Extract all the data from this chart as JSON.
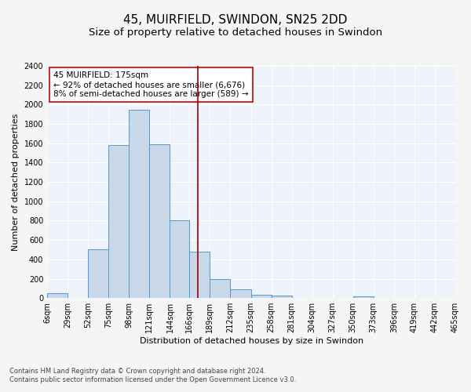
{
  "title": "45, MUIRFIELD, SWINDON, SN25 2DD",
  "subtitle": "Size of property relative to detached houses in Swindon",
  "xlabel": "Distribution of detached houses by size in Swindon",
  "ylabel": "Number of detached properties",
  "footnote1": "Contains HM Land Registry data © Crown copyright and database right 2024.",
  "footnote2": "Contains public sector information licensed under the Open Government Licence v3.0.",
  "annotation_line1": "45 MUIRFIELD: 175sqm",
  "annotation_line2": "← 92% of detached houses are smaller (6,676)",
  "annotation_line3": "8% of semi-detached houses are larger (589) →",
  "vline_x": 175,
  "bar_edges": [
    6,
    29,
    52,
    75,
    98,
    121,
    144,
    166,
    189,
    212,
    235,
    258,
    281,
    304,
    327,
    350,
    373,
    396,
    419,
    442,
    465
  ],
  "bar_heights": [
    50,
    0,
    500,
    1580,
    1950,
    1590,
    800,
    480,
    200,
    90,
    35,
    30,
    0,
    0,
    0,
    20,
    0,
    0,
    0,
    0
  ],
  "bar_color": "#c8d8e8",
  "bar_edgecolor": "#5599cc",
  "vline_color": "#990000",
  "annotation_box_edgecolor": "#cc0000",
  "annotation_box_facecolor": "#ffffff",
  "bg_color": "#eef2fb",
  "fig_color": "#f5f5f5",
  "grid_color": "#ffffff",
  "ylim": [
    0,
    2400
  ],
  "yticks": [
    0,
    200,
    400,
    600,
    800,
    1000,
    1200,
    1400,
    1600,
    1800,
    2000,
    2200,
    2400
  ],
  "xtick_labels": [
    "6sqm",
    "29sqm",
    "52sqm",
    "75sqm",
    "98sqm",
    "121sqm",
    "144sqm",
    "166sqm",
    "189sqm",
    "212sqm",
    "235sqm",
    "258sqm",
    "281sqm",
    "304sqm",
    "327sqm",
    "350sqm",
    "373sqm",
    "396sqm",
    "419sqm",
    "442sqm",
    "465sqm"
  ],
  "title_fontsize": 11,
  "subtitle_fontsize": 9.5,
  "axis_label_fontsize": 8,
  "tick_fontsize": 7,
  "annotation_fontsize": 7.5,
  "footnote_fontsize": 6
}
